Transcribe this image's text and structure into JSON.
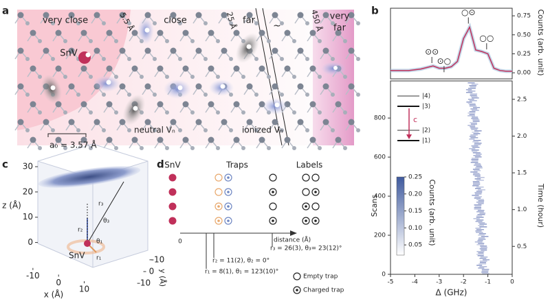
{
  "panel_labels": [
    "a",
    "b",
    "c",
    "d"
  ],
  "lattice": {
    "very_close": "very close",
    "d1": "5.5 Å",
    "close": "close",
    "d2": "25 Å",
    "far": "far",
    "break": "~",
    "d3": "450 Å",
    "very_far": [
      "very",
      "far"
    ],
    "snv": "SnV",
    "a0": "a₀ = 3.57 Å",
    "neutral": "neutral Vₙ",
    "ionized": "ionized Vₙ"
  },
  "chart_data": [
    {
      "type": "line",
      "x": [
        -5,
        -4.75,
        -4.5,
        -4.25,
        -4,
        -3.75,
        -3.5,
        -3.25,
        -3,
        -2.75,
        -2.5,
        -2.25,
        -2,
        -1.75,
        -1.5,
        -1.25,
        -1,
        -0.75,
        -0.5,
        -0.25,
        0
      ],
      "values": [
        0.03,
        0.03,
        0.03,
        0.03,
        0.04,
        0.05,
        0.07,
        0.09,
        0.06,
        0.06,
        0.08,
        0.15,
        0.45,
        0.6,
        0.3,
        0.28,
        0.25,
        0.06,
        0.03,
        0.02,
        0.02
      ],
      "color": "#c0305a",
      "xlim": [
        -5,
        0
      ],
      "ylim": [
        -0.08,
        0.85
      ],
      "yticks": [
        {
          "value": 0,
          "label": "0.00"
        },
        0.25,
        {
          "value": 0.5,
          "label": "0.50"
        },
        0.75
      ],
      "ylabel": "Counts (arb. unit)",
      "peak_labels": [
        "⊙⊙",
        "⊙○",
        "○⊙",
        "○○"
      ]
    },
    {
      "type": "heatmap",
      "xlabel": "Δ (GHz)",
      "xlim": [
        -5,
        0
      ],
      "xticks": [
        -5,
        -4,
        -3,
        -2,
        -1,
        0
      ],
      "ylabel": "Scans",
      "ylim": [
        0,
        990
      ],
      "yticks": [
        0,
        200,
        400,
        600,
        800
      ],
      "y2label": "Time (hour)",
      "y2lim": [
        0.12,
        2.75
      ],
      "y2ticks": [
        0.5,
        {
          "value": 1,
          "label": "1.0"
        },
        1.5,
        {
          "value": 2,
          "label": "2.0"
        },
        2.5
      ],
      "colorbar": {
        "label": "Counts (arb. unit)",
        "lim": [
          0.02,
          0.25
        ],
        "ticks": [
          0.05,
          {
            "value": 0.1,
            "label": "0.10"
          },
          0.15,
          {
            "value": 0.2,
            "label": "0.20"
          },
          0.25
        ]
      },
      "levels": [
        "|4⟩",
        "|3⟩",
        "|2⟩",
        "|1⟩"
      ],
      "transition": "c"
    }
  ],
  "geometry": {
    "zlabel": "z (Å)",
    "zlim": [
      -5,
      33
    ],
    "zticks": [
      0,
      10,
      20,
      30
    ],
    "xlabel": "x (Å)",
    "xlim": [
      -18,
      12
    ],
    "xticks": [
      -10,
      0,
      10
    ],
    "ylabel": "y (Å)",
    "ylim": [
      -14,
      14
    ],
    "yticks": [
      -10,
      0,
      10
    ],
    "snv": "SnV",
    "r1": "r₁",
    "r2": "r₂",
    "r3": "r₃",
    "t1": "θ₁",
    "t3": "θ₃"
  },
  "traps": {
    "headers": [
      "SnV",
      "Traps",
      "Labels"
    ],
    "origin": "0",
    "axis": "distance (Å)",
    "r3": "r₃ = 26(3),  θ₃= 23(12)°",
    "r2": "r₂ = 11(2),  θ₂ = 0°",
    "r1": "r₁ = 8(1),  θ₁ = 123(10)°",
    "legend": [
      "Empty trap",
      "Charged trap"
    ]
  }
}
